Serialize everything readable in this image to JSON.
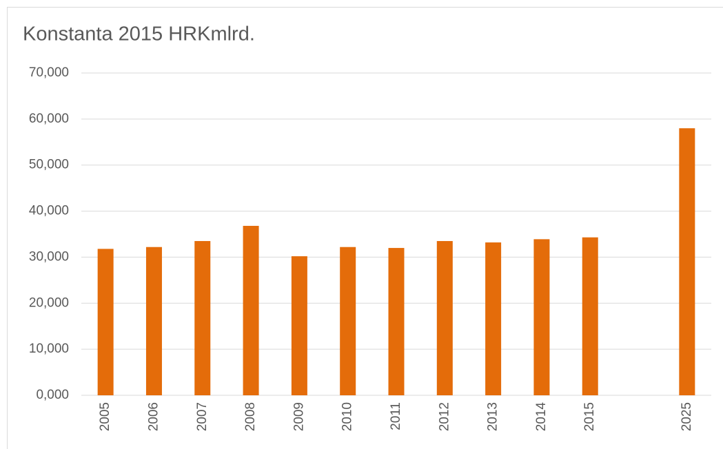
{
  "chart_data": {
    "type": "bar",
    "title": "Konstanta 2015 HRKmlrd.",
    "categories": [
      "2005",
      "2006",
      "2007",
      "2008",
      "2009",
      "2010",
      "2011",
      "2012",
      "2013",
      "2014",
      "2015",
      null,
      "2025"
    ],
    "values": [
      31.8,
      32.2,
      33.5,
      36.8,
      30.2,
      32.2,
      32.0,
      33.5,
      33.2,
      33.9,
      34.3,
      null,
      58.0
    ],
    "color": "#e46c0a",
    "ylim": [
      0,
      70
    ],
    "yticks": [
      {
        "value": 0,
        "label": "0,000"
      },
      {
        "value": 10,
        "label": "10,000"
      },
      {
        "value": 20,
        "label": "20,000"
      },
      {
        "value": 30,
        "label": "30,000"
      },
      {
        "value": 40,
        "label": "40,000"
      },
      {
        "value": 50,
        "label": "50,000"
      },
      {
        "value": 60,
        "label": "60,000"
      },
      {
        "value": 70,
        "label": "70,000"
      }
    ],
    "grid": true
  }
}
